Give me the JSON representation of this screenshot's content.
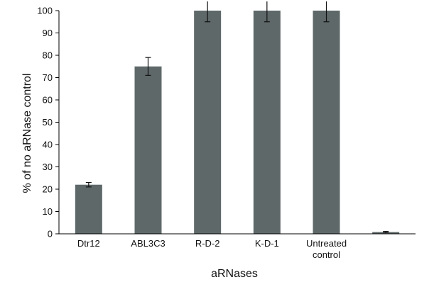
{
  "chart_data": {
    "type": "bar",
    "categories": [
      "Dtr12",
      "ABL3C3",
      "R-D-2",
      "K-D-1",
      "Untreated control",
      ""
    ],
    "category_lines": [
      [
        "Dtr12"
      ],
      [
        "ABL3C3"
      ],
      [
        "R-D-2"
      ],
      [
        "K-D-1"
      ],
      [
        "Untreated",
        "control"
      ],
      [
        ""
      ]
    ],
    "values": [
      22,
      75,
      100,
      100,
      100,
      0.8
    ],
    "errors": [
      1,
      4,
      5,
      5,
      5,
      0.3
    ],
    "xlabel": "aRNases",
    "ylabel": "% of no aRNase control",
    "ylim": [
      0,
      100
    ],
    "yticks": [
      0,
      10,
      20,
      30,
      40,
      50,
      60,
      70,
      80,
      90,
      100
    ],
    "grid": false,
    "bar_color": "#5f6869",
    "axis_color": "#000000"
  }
}
